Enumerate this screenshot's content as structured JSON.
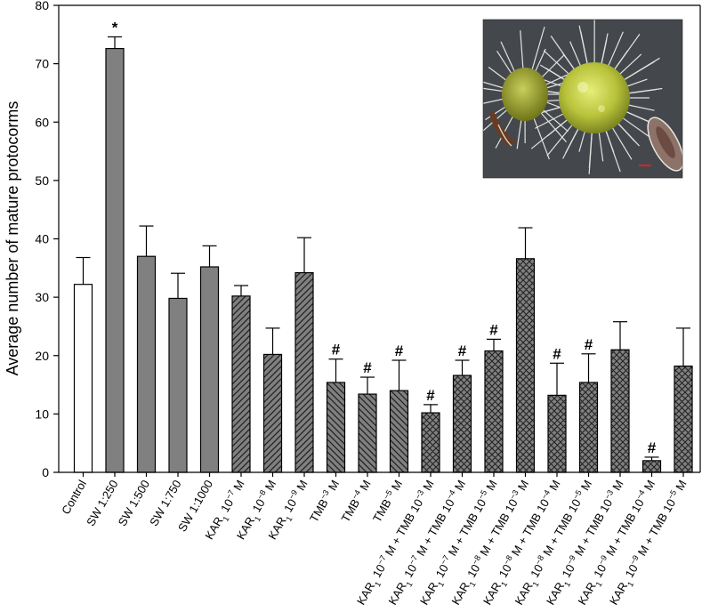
{
  "chart_data": {
    "type": "bar",
    "title": "",
    "xlabel": "",
    "ylabel": "Average number of mature protocorms",
    "ylim": [
      0,
      80
    ],
    "yticks": [
      0,
      10,
      20,
      30,
      40,
      50,
      60,
      70,
      80
    ],
    "grid": false,
    "categories": [
      {
        "pre": "Control",
        "parts": []
      },
      {
        "pre": "SW 1:250",
        "parts": []
      },
      {
        "pre": "SW 1:500",
        "parts": []
      },
      {
        "pre": "SW 1:750",
        "parts": []
      },
      {
        "pre": "SW 1:1000",
        "parts": []
      },
      {
        "pre": "KAR",
        "parts": [
          [
            "1",
            "sub"
          ],
          [
            " 10",
            ""
          ],
          [
            "−7",
            "sup"
          ],
          [
            " M",
            ""
          ]
        ]
      },
      {
        "pre": "KAR",
        "parts": [
          [
            "1",
            "sub"
          ],
          [
            " 10",
            ""
          ],
          [
            "−8",
            "sup"
          ],
          [
            " M",
            ""
          ]
        ]
      },
      {
        "pre": "KAR",
        "parts": [
          [
            "1",
            "sub"
          ],
          [
            " 10",
            ""
          ],
          [
            "−9",
            "sup"
          ],
          [
            " M",
            ""
          ]
        ]
      },
      {
        "pre": "TMB",
        "parts": [
          [
            "−3",
            "sup"
          ],
          [
            " M",
            ""
          ]
        ]
      },
      {
        "pre": "TMB",
        "parts": [
          [
            "−4",
            "sup"
          ],
          [
            " M",
            ""
          ]
        ]
      },
      {
        "pre": "TMB",
        "parts": [
          [
            "−5",
            "sup"
          ],
          [
            " M",
            ""
          ]
        ]
      },
      {
        "pre": "KAR",
        "parts": [
          [
            "1",
            "sub"
          ],
          [
            " 10",
            ""
          ],
          [
            "−7",
            "sup"
          ],
          [
            " M + TMB 10",
            ""
          ],
          [
            "−3",
            "sup"
          ],
          [
            " M",
            ""
          ]
        ]
      },
      {
        "pre": "KAR",
        "parts": [
          [
            "1",
            "sub"
          ],
          [
            " 10",
            ""
          ],
          [
            "−7",
            "sup"
          ],
          [
            " M + TMB 10",
            ""
          ],
          [
            "−4",
            "sup"
          ],
          [
            " M",
            ""
          ]
        ]
      },
      {
        "pre": "KAR",
        "parts": [
          [
            "1",
            "sub"
          ],
          [
            " 10",
            ""
          ],
          [
            "−7",
            "sup"
          ],
          [
            " M + TMB 10",
            ""
          ],
          [
            "−5",
            "sup"
          ],
          [
            " M",
            ""
          ]
        ]
      },
      {
        "pre": "KAR",
        "parts": [
          [
            "1",
            "sub"
          ],
          [
            " 10",
            ""
          ],
          [
            "−8",
            "sup"
          ],
          [
            " M + TMB 10",
            ""
          ],
          [
            "−3",
            "sup"
          ],
          [
            " M",
            ""
          ]
        ]
      },
      {
        "pre": "KAR",
        "parts": [
          [
            "1",
            "sub"
          ],
          [
            " 10",
            ""
          ],
          [
            "−8",
            "sup"
          ],
          [
            " M + TMB 10",
            ""
          ],
          [
            "−4",
            "sup"
          ],
          [
            " M",
            ""
          ]
        ]
      },
      {
        "pre": "KAR",
        "parts": [
          [
            "1",
            "sub"
          ],
          [
            " 10",
            ""
          ],
          [
            "−8",
            "sup"
          ],
          [
            " M + TMB 10",
            ""
          ],
          [
            "−5",
            "sup"
          ],
          [
            " M",
            ""
          ]
        ]
      },
      {
        "pre": "KAR",
        "parts": [
          [
            "1",
            "sub"
          ],
          [
            " 10",
            ""
          ],
          [
            "−9",
            "sup"
          ],
          [
            " M + TMB 10",
            ""
          ],
          [
            "−3",
            "sup"
          ],
          [
            " M",
            ""
          ]
        ]
      },
      {
        "pre": "KAR",
        "parts": [
          [
            "1",
            "sub"
          ],
          [
            " 10",
            ""
          ],
          [
            "−9",
            "sup"
          ],
          [
            " M + TMB 10",
            ""
          ],
          [
            "−4",
            "sup"
          ],
          [
            " M",
            ""
          ]
        ]
      },
      {
        "pre": "KAR",
        "parts": [
          [
            "1",
            "sub"
          ],
          [
            " 10",
            ""
          ],
          [
            "−9",
            "sup"
          ],
          [
            " M + TMB 10",
            ""
          ],
          [
            "−5",
            "sup"
          ],
          [
            " M",
            ""
          ]
        ]
      }
    ],
    "values": [
      32.2,
      72.6,
      37.0,
      29.8,
      35.2,
      30.2,
      20.2,
      34.2,
      15.4,
      13.4,
      14.0,
      10.2,
      16.6,
      20.8,
      36.6,
      13.2,
      15.4,
      21.0,
      2.0,
      18.2
    ],
    "errors": [
      4.6,
      2.0,
      5.2,
      4.3,
      3.6,
      1.8,
      4.5,
      6.0,
      4.0,
      2.9,
      5.2,
      1.4,
      2.6,
      2.0,
      5.3,
      5.5,
      4.9,
      4.8,
      0.6,
      6.5
    ],
    "significance": [
      "",
      "*",
      "",
      "",
      "",
      "",
      "",
      "",
      "#",
      "#",
      "#",
      "#",
      "#",
      "#",
      "",
      "#",
      "#",
      "",
      "#",
      ""
    ],
    "fill_patterns": [
      "white",
      "solid",
      "solid",
      "solid",
      "solid",
      "diag-up",
      "diag-up",
      "diag-up",
      "diag-down",
      "diag-down",
      "diag-down",
      "crosshatch",
      "crosshatch",
      "crosshatch",
      "crosshatch",
      "crosshatch",
      "crosshatch",
      "crosshatch",
      "crosshatch",
      "crosshatch"
    ],
    "colors": {
      "bar_fill": "#808080",
      "bar_stroke": "#000000",
      "control_fill": "#ffffff"
    }
  },
  "inset": {
    "photo": "protocorm-micrograph"
  }
}
